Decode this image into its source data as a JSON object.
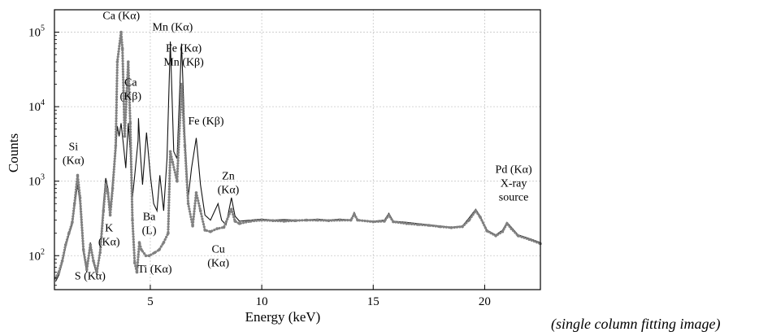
{
  "chart_data": {
    "type": "line",
    "title": "",
    "xlabel": "Energy (keV)",
    "ylabel": "Counts",
    "xlim": [
      0.7,
      22.5
    ],
    "ylim": [
      35,
      200000
    ],
    "yscale": "log",
    "grid": true,
    "x_ticks": [
      {
        "value": 5,
        "label": "5"
      },
      {
        "value": 10,
        "label": "10"
      },
      {
        "value": 15,
        "label": "15"
      },
      {
        "value": 20,
        "label": "20"
      }
    ],
    "y_ticks": [
      {
        "value": 100,
        "base": "10",
        "exp": "2"
      },
      {
        "value": 1000,
        "base": "10",
        "exp": "3"
      },
      {
        "value": 10000,
        "base": "10",
        "exp": "4"
      },
      {
        "value": 100000,
        "base": "10",
        "exp": "5"
      }
    ],
    "series": [
      {
        "style": "solid-line",
        "color": "#111111",
        "points": [
          [
            0.75,
            45
          ],
          [
            0.9,
            55
          ],
          [
            1.05,
            80
          ],
          [
            1.2,
            130
          ],
          [
            1.35,
            190
          ],
          [
            1.5,
            260
          ],
          [
            1.6,
            450
          ],
          [
            1.74,
            900
          ],
          [
            1.85,
            500
          ],
          [
            2.0,
            110
          ],
          [
            2.15,
            60
          ],
          [
            2.31,
            150
          ],
          [
            2.45,
            80
          ],
          [
            2.6,
            55
          ],
          [
            2.75,
            120
          ],
          [
            2.9,
            500
          ],
          [
            3.0,
            1100
          ],
          [
            3.1,
            800
          ],
          [
            3.2,
            400
          ],
          [
            3.31,
            1000
          ],
          [
            3.45,
            2500
          ],
          [
            3.52,
            5500
          ],
          [
            3.6,
            4000
          ],
          [
            3.69,
            6000
          ],
          [
            3.8,
            3000
          ],
          [
            3.9,
            1500
          ],
          [
            4.01,
            6000
          ],
          [
            4.1,
            2500
          ],
          [
            4.2,
            600
          ],
          [
            4.3,
            1200
          ],
          [
            4.45,
            3500
          ],
          [
            4.47,
            7000
          ],
          [
            4.55,
            2500
          ],
          [
            4.65,
            900
          ],
          [
            4.83,
            4500
          ],
          [
            5.0,
            1200
          ],
          [
            5.15,
            500
          ],
          [
            5.3,
            400
          ],
          [
            5.43,
            1200
          ],
          [
            5.6,
            400
          ],
          [
            5.75,
            2000
          ],
          [
            5.9,
            75000
          ],
          [
            6.05,
            2500
          ],
          [
            6.2,
            2000
          ],
          [
            6.4,
            70000
          ],
          [
            6.55,
            4000
          ],
          [
            6.7,
            600
          ],
          [
            6.85,
            1500
          ],
          [
            7.06,
            3800
          ],
          [
            7.25,
            900
          ],
          [
            7.45,
            350
          ],
          [
            7.7,
            300
          ],
          [
            8.04,
            500
          ],
          [
            8.2,
            300
          ],
          [
            8.4,
            260
          ],
          [
            8.64,
            600
          ],
          [
            8.8,
            340
          ],
          [
            9.0,
            290
          ],
          [
            9.5,
            300
          ],
          [
            10.0,
            310
          ],
          [
            10.5,
            300
          ],
          [
            11.0,
            305
          ],
          [
            11.5,
            300
          ],
          [
            12.0,
            300
          ],
          [
            12.5,
            310
          ],
          [
            13.0,
            300
          ],
          [
            13.5,
            310
          ],
          [
            14.0,
            300
          ],
          [
            14.15,
            380
          ],
          [
            14.3,
            300
          ],
          [
            15.0,
            290
          ],
          [
            15.5,
            300
          ],
          [
            15.7,
            370
          ],
          [
            15.9,
            290
          ],
          [
            16.5,
            280
          ],
          [
            17.0,
            270
          ],
          [
            17.5,
            260
          ],
          [
            18.0,
            250
          ],
          [
            18.5,
            240
          ],
          [
            19.0,
            250
          ],
          [
            19.3,
            320
          ],
          [
            19.6,
            420
          ],
          [
            19.8,
            340
          ],
          [
            20.1,
            220
          ],
          [
            20.5,
            190
          ],
          [
            20.8,
            220
          ],
          [
            21.0,
            280
          ],
          [
            21.2,
            240
          ],
          [
            21.5,
            190
          ],
          [
            22.0,
            170
          ],
          [
            22.5,
            150
          ]
        ]
      },
      {
        "style": "dotted-markers",
        "color": "#808080",
        "points": [
          [
            0.75,
            50
          ],
          [
            0.9,
            60
          ],
          [
            1.05,
            85
          ],
          [
            1.2,
            140
          ],
          [
            1.35,
            200
          ],
          [
            1.5,
            280
          ],
          [
            1.6,
            500
          ],
          [
            1.74,
            1200
          ],
          [
            1.85,
            600
          ],
          [
            2.0,
            120
          ],
          [
            2.15,
            65
          ],
          [
            2.31,
            140
          ],
          [
            2.45,
            85
          ],
          [
            2.6,
            60
          ],
          [
            2.75,
            110
          ],
          [
            2.9,
            400
          ],
          [
            3.0,
            900
          ],
          [
            3.1,
            700
          ],
          [
            3.2,
            350
          ],
          [
            3.31,
            800
          ],
          [
            3.45,
            3000
          ],
          [
            3.52,
            40000
          ],
          [
            3.69,
            100000
          ],
          [
            3.75,
            60000
          ],
          [
            3.85,
            4000
          ],
          [
            4.01,
            40000
          ],
          [
            4.1,
            6000
          ],
          [
            4.2,
            300
          ],
          [
            4.3,
            80
          ],
          [
            4.4,
            60
          ],
          [
            4.51,
            150
          ],
          [
            4.6,
            120
          ],
          [
            4.8,
            100
          ],
          [
            4.95,
            100
          ],
          [
            5.2,
            110
          ],
          [
            5.4,
            120
          ],
          [
            5.6,
            150
          ],
          [
            5.8,
            200
          ],
          [
            5.9,
            2500
          ],
          [
            6.0,
            1800
          ],
          [
            6.2,
            1000
          ],
          [
            6.4,
            20000
          ],
          [
            6.55,
            3000
          ],
          [
            6.7,
            500
          ],
          [
            6.9,
            250
          ],
          [
            7.06,
            700
          ],
          [
            7.25,
            400
          ],
          [
            7.45,
            220
          ],
          [
            7.7,
            210
          ],
          [
            8.0,
            230
          ],
          [
            8.3,
            240
          ],
          [
            8.64,
            420
          ],
          [
            8.8,
            290
          ],
          [
            9.0,
            270
          ],
          [
            9.5,
            290
          ],
          [
            10.0,
            300
          ],
          [
            10.5,
            295
          ],
          [
            11.0,
            290
          ],
          [
            11.5,
            295
          ],
          [
            12.0,
            300
          ],
          [
            12.5,
            300
          ],
          [
            13.0,
            295
          ],
          [
            13.5,
            300
          ],
          [
            14.0,
            300
          ],
          [
            14.15,
            360
          ],
          [
            14.3,
            300
          ],
          [
            15.0,
            285
          ],
          [
            15.5,
            290
          ],
          [
            15.7,
            350
          ],
          [
            15.9,
            285
          ],
          [
            16.5,
            270
          ],
          [
            17.0,
            262
          ],
          [
            17.5,
            255
          ],
          [
            18.0,
            245
          ],
          [
            18.5,
            238
          ],
          [
            19.0,
            245
          ],
          [
            19.3,
            300
          ],
          [
            19.6,
            400
          ],
          [
            19.8,
            330
          ],
          [
            20.1,
            215
          ],
          [
            20.5,
            185
          ],
          [
            20.8,
            210
          ],
          [
            21.0,
            270
          ],
          [
            21.2,
            230
          ],
          [
            21.5,
            185
          ],
          [
            22.0,
            165
          ],
          [
            22.5,
            145
          ]
        ]
      }
    ],
    "annotations": [
      {
        "lines": [
          "Si",
          "(Kα)"
        ],
        "x": 1.55,
        "y": 2600
      },
      {
        "lines": [
          "S (Kα)"
        ],
        "x": 2.3,
        "y": 48
      },
      {
        "lines": [
          "K",
          "(Kα)"
        ],
        "x": 3.15,
        "y": 210
      },
      {
        "lines": [
          "Ca (Kα)"
        ],
        "x": 3.7,
        "y": 150000
      },
      {
        "lines": [
          "Ca",
          "(Kβ)"
        ],
        "x": 4.12,
        "y": 19000
      },
      {
        "lines": [
          "Ba",
          "(L)"
        ],
        "x": 4.95,
        "y": 300
      },
      {
        "lines": [
          "Ti (Kα)"
        ],
        "x": 5.2,
        "y": 59
      },
      {
        "lines": [
          "Mn (Kα)"
        ],
        "x": 6.0,
        "y": 105000
      },
      {
        "lines": [
          "Fe (Kα)",
          "Mn (Kβ)"
        ],
        "x": 6.5,
        "y": 55000
      },
      {
        "lines": [
          "Fe (Kβ)"
        ],
        "x": 7.5,
        "y": 5800
      },
      {
        "lines": [
          "Zn",
          "(Kα)"
        ],
        "x": 8.5,
        "y": 1050
      },
      {
        "lines": [
          "Cu",
          "(Kα)"
        ],
        "x": 8.05,
        "y": 110
      },
      {
        "lines": [
          "Pd (Kα)",
          "X-ray",
          "source"
        ],
        "x": 21.3,
        "y": 1300
      }
    ]
  },
  "caption": "(single column fitting image)"
}
